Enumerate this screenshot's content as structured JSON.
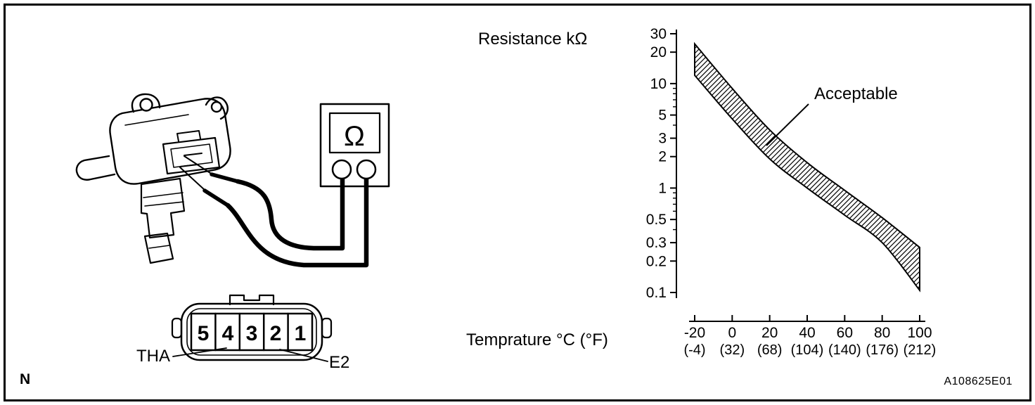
{
  "frame": {
    "corner_mark": "N",
    "doc_code": "A108625E01"
  },
  "left_diagram": {
    "meter": {
      "type": "ohmmeter",
      "display_symbol": "Ω"
    },
    "connector": {
      "pins": [
        "5",
        "4",
        "3",
        "2",
        "1"
      ],
      "label_tha": "THA",
      "label_e2": "E2"
    }
  },
  "chart_data": {
    "type": "area",
    "title": "Resistance kΩ",
    "xlabel": "Temprature °C (°F)",
    "ylabel": "Resistance kΩ",
    "y_scale": "log",
    "grid": false,
    "legend": false,
    "xlim": [
      -20,
      100
    ],
    "ylim": [
      0.1,
      30
    ],
    "y_ticks": [
      "30",
      "20",
      "10",
      "5",
      "3",
      "2",
      "1",
      "0.5",
      "0.3",
      "0.2",
      "0.1"
    ],
    "x_ticks_c": [
      "-20",
      "0",
      "20",
      "40",
      "60",
      "80",
      "100"
    ],
    "x_ticks_f": [
      "(-4)",
      "(32)",
      "(68)",
      "(104)",
      "(140)",
      "(176)",
      "(212)"
    ],
    "band": {
      "label": "Acceptable",
      "temperatures_c": [
        -20,
        0,
        20,
        40,
        60,
        80,
        100
      ],
      "upper_kohm": [
        24,
        9.0,
        3.6,
        1.75,
        0.95,
        0.52,
        0.27
      ],
      "lower_kohm": [
        12,
        4.6,
        1.9,
        1.0,
        0.55,
        0.3,
        0.105
      ]
    }
  }
}
